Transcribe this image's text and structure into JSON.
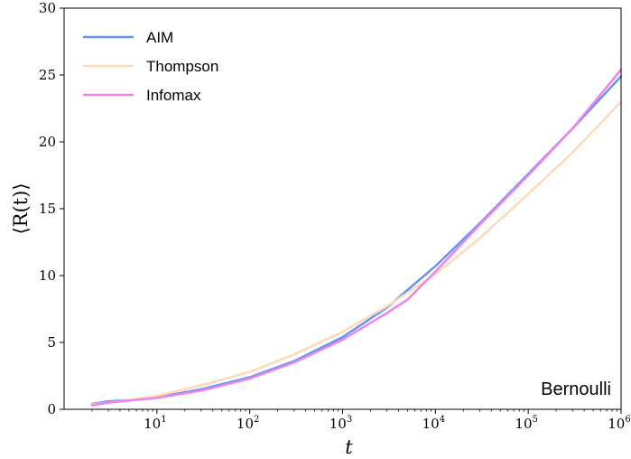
{
  "chart_data": {
    "type": "line",
    "xscale": "log",
    "xlim": [
      1,
      1000000
    ],
    "ylim": [
      0,
      30
    ],
    "xlabel": "t",
    "ylabel": "⟨R(t)⟩",
    "xticks": [
      {
        "value": 10,
        "base": "10",
        "exp": "1"
      },
      {
        "value": 100,
        "base": "10",
        "exp": "2"
      },
      {
        "value": 1000,
        "base": "10",
        "exp": "3"
      },
      {
        "value": 10000,
        "base": "10",
        "exp": "4"
      },
      {
        "value": 100000,
        "base": "10",
        "exp": "5"
      },
      {
        "value": 1000000,
        "base": "10",
        "exp": "6"
      }
    ],
    "yticks": [
      0,
      5,
      10,
      15,
      20,
      25,
      30
    ],
    "annotation": "Bernoulli",
    "legend_position": "upper-left",
    "grid": false,
    "series": [
      {
        "name": "AIM",
        "color": "#6495ed",
        "x": [
          2,
          3,
          5,
          10,
          30,
          100,
          300,
          1000,
          3000,
          10000,
          30000,
          100000,
          300000,
          1000000
        ],
        "y": [
          0.4,
          0.6,
          0.7,
          0.9,
          1.5,
          2.4,
          3.6,
          5.4,
          7.6,
          10.7,
          13.9,
          17.6,
          21.0,
          24.9
        ]
      },
      {
        "name": "Thompson",
        "color": "#ffdab9",
        "x": [
          2,
          3,
          5,
          10,
          30,
          100,
          300,
          1000,
          3000,
          10000,
          30000,
          100000,
          300000,
          1000000
        ],
        "y": [
          0.35,
          0.5,
          0.7,
          1.0,
          1.8,
          2.8,
          4.1,
          5.8,
          7.7,
          10.1,
          12.8,
          16.1,
          19.2,
          23.0
        ]
      },
      {
        "name": "Infomax",
        "color": "#ee82ee",
        "x": [
          2,
          3,
          5,
          10,
          30,
          100,
          300,
          1000,
          3000,
          5000,
          10000,
          30000,
          100000,
          300000,
          1000000
        ],
        "y": [
          0.3,
          0.5,
          0.65,
          0.85,
          1.4,
          2.3,
          3.5,
          5.2,
          7.2,
          8.2,
          10.3,
          13.8,
          17.5,
          21.0,
          25.4
        ]
      }
    ]
  }
}
